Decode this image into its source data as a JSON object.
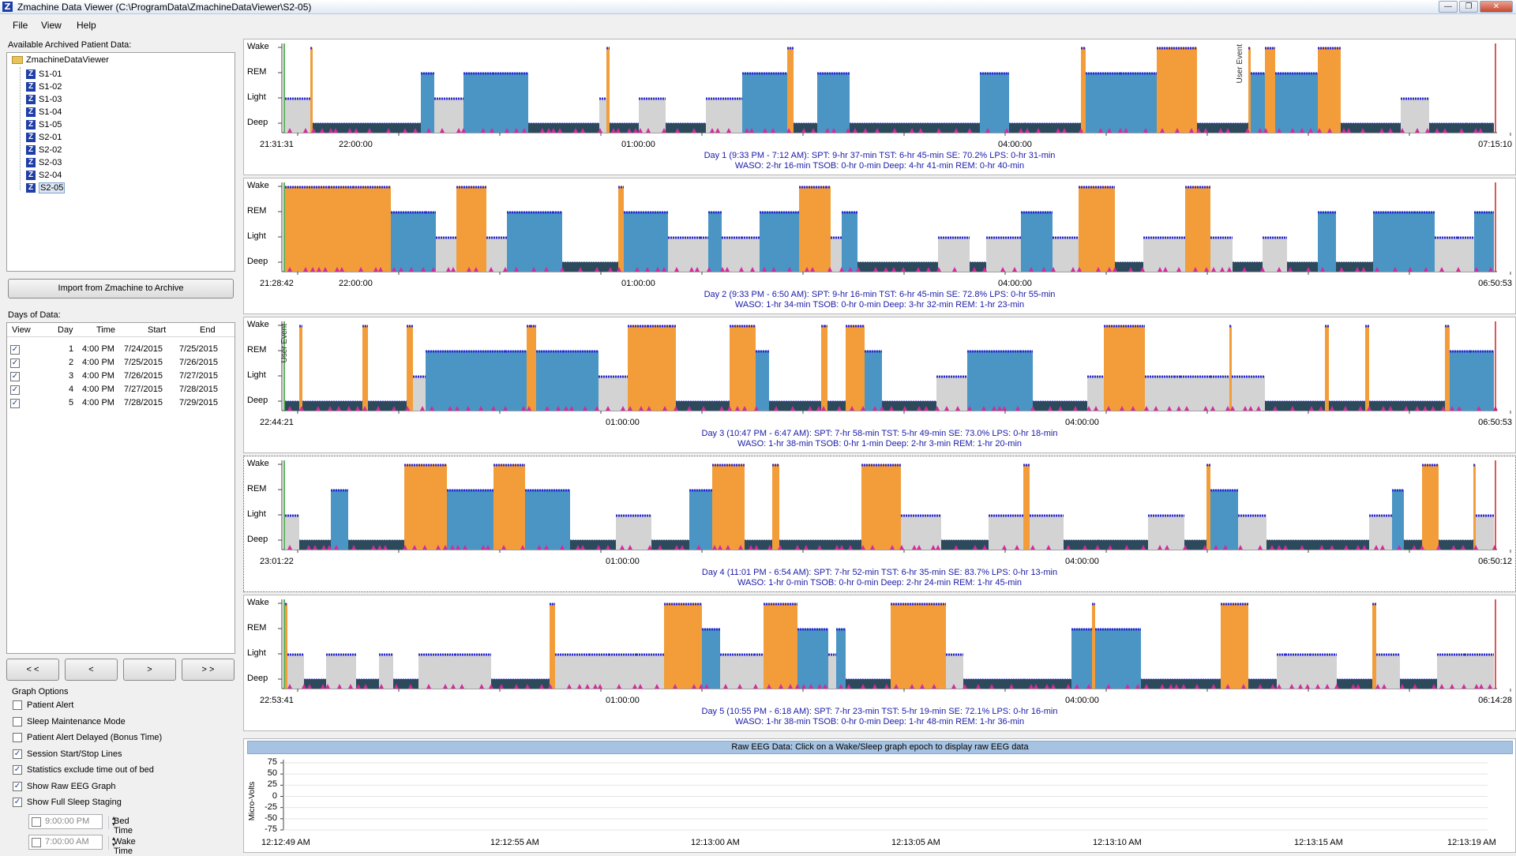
{
  "window": {
    "title": "Zmachine Data Viewer (C:\\ProgramData\\ZmachineDataViewer\\S2-05)"
  },
  "menu": [
    "File",
    "View",
    "Help"
  ],
  "tree": {
    "label": "Available Archived Patient Data:",
    "root": "ZmachineDataViewer",
    "items": [
      "S1-01",
      "S1-02",
      "S1-03",
      "S1-04",
      "S1-05",
      "S2-01",
      "S2-02",
      "S2-03",
      "S2-04",
      "S2-05"
    ],
    "selected": "S2-05"
  },
  "import_button": "Import from Zmachine to Archive",
  "days": {
    "label": "Days of Data:",
    "columns": [
      "View",
      "Day",
      "Time",
      "Start",
      "End"
    ],
    "rows": [
      {
        "day": "1",
        "time": "4:00 PM",
        "start": "7/24/2015",
        "end": "7/25/2015"
      },
      {
        "day": "2",
        "time": "4:00 PM",
        "start": "7/25/2015",
        "end": "7/26/2015"
      },
      {
        "day": "3",
        "time": "4:00 PM",
        "start": "7/26/2015",
        "end": "7/27/2015"
      },
      {
        "day": "4",
        "time": "4:00 PM",
        "start": "7/27/2015",
        "end": "7/28/2015"
      },
      {
        "day": "5",
        "time": "4:00 PM",
        "start": "7/28/2015",
        "end": "7/29/2015"
      }
    ]
  },
  "nav_buttons": [
    "< <",
    "<",
    ">",
    "> >"
  ],
  "graph_options": {
    "label": "Graph Options",
    "options": [
      {
        "label": "Patient Alert",
        "checked": false
      },
      {
        "label": "Sleep Maintenance Mode",
        "checked": false
      },
      {
        "label": "Patient Alert Delayed (Bonus Time)",
        "checked": false
      },
      {
        "label": "Session Start/Stop Lines",
        "checked": true
      },
      {
        "label": "Statistics exclude time out of bed",
        "checked": true
      },
      {
        "label": "Show Raw EEG Graph",
        "checked": true
      },
      {
        "label": "Show Full Sleep Staging",
        "checked": true
      }
    ],
    "bed_time": {
      "value": "9:00:00 PM",
      "label": "Bed Time"
    },
    "wake_time": {
      "value": "7:00:00 AM",
      "label": "Wake Time"
    }
  },
  "stages": [
    "Wake",
    "REM",
    "Light",
    "Deep"
  ],
  "colors": {
    "wake": "#f29d3a",
    "rem": "#4a95c4",
    "light": "#d3d3d3",
    "deep": "#2c4a5c",
    "marker": "#d42a9c",
    "lines": "#2b2bd0"
  },
  "charts": [
    {
      "start": "21:31:31",
      "end": "07:15:10",
      "ticks": [
        "22:00:00",
        "01:00:00",
        "04:00:00"
      ],
      "stats1": "Day 1 (9:33 PM - 7:12 AM): SPT: 9-hr 37-min   TST: 6-hr 45-min   SE: 70.2%   LPS: 0-hr 31-min",
      "stats2": "WASO: 2-hr 16-min   TSOB: 0-hr 0-min   Deep: 4-hr 41-min   REM: 0-hr 40-min",
      "user_event": "User Event"
    },
    {
      "start": "21:28:42",
      "end": "06:50:53",
      "ticks": [
        "22:00:00",
        "01:00:00",
        "04:00:00"
      ],
      "stats1": "Day 2 (9:33 PM - 6:50 AM): SPT: 9-hr 16-min   TST: 6-hr 45-min   SE: 72.8%   LPS: 0-hr 55-min",
      "stats2": "WASO: 1-hr 34-min   TSOB: 0-hr 0-min   Deep: 3-hr 32-min   REM: 1-hr 23-min"
    },
    {
      "start": "22:44:21",
      "end": "06:50:53",
      "ticks": [
        "01:00:00",
        "04:00:00"
      ],
      "stats1": "Day 3 (10:47 PM - 6:47 AM): SPT: 7-hr 58-min   TST: 5-hr 49-min   SE: 73.0%   LPS: 0-hr 18-min",
      "stats2": "WASO: 1-hr 38-min   TSOB: 0-hr 1-min   Deep: 2-hr 3-min   REM: 1-hr 20-min",
      "user_event": "User Event"
    },
    {
      "start": "23:01:22",
      "end": "06:50:12",
      "ticks": [
        "01:00:00",
        "04:00:00"
      ],
      "stats1": "Day 4 (11:01 PM - 6:54 AM): SPT: 7-hr 52-min   TST: 6-hr 35-min   SE: 83.7%   LPS: 0-hr 13-min",
      "stats2": "WASO: 1-hr 0-min   TSOB: 0-hr 0-min   Deep: 2-hr 24-min   REM: 1-hr 45-min"
    },
    {
      "start": "22:53:41",
      "end": "06:14:28",
      "ticks": [
        "01:00:00",
        "04:00:00"
      ],
      "stats1": "Day 5 (10:55 PM - 6:18 AM): SPT: 7-hr 23-min   TST: 5-hr 19-min   SE: 72.1%   LPS: 0-hr 16-min",
      "stats2": "WASO: 1-hr 38-min   TSOB: 0-hr 0-min   Deep: 1-hr 48-min   REM: 1-hr 36-min"
    }
  ],
  "eeg": {
    "title": "Raw EEG Data: Click on a Wake/Sleep graph epoch to display raw EEG data",
    "ylabel": "Micro-Volts",
    "yticks": [
      "75",
      "50",
      "25",
      "0",
      "-25",
      "-50",
      "-75"
    ],
    "xticks": [
      "12:12:49 AM",
      "12:12:55 AM",
      "12:13:00 AM",
      "12:13:05 AM",
      "12:13:10 AM",
      "12:13:15 AM",
      "12:13:19 AM"
    ]
  }
}
